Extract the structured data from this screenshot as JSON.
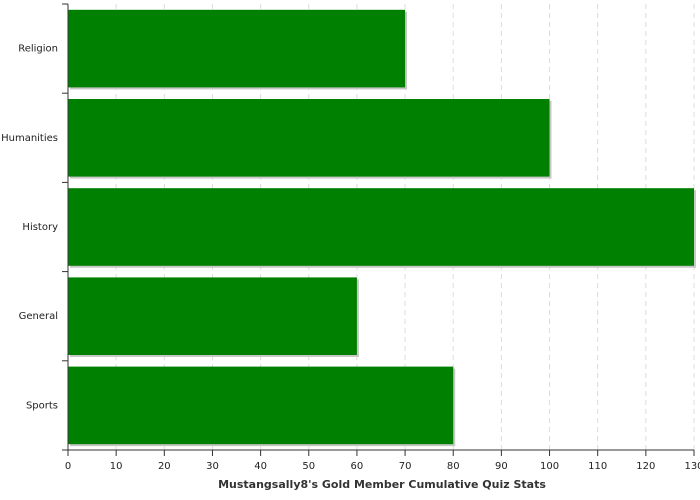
{
  "chart_data": {
    "type": "barh",
    "x_label": "Mustangsally8's Gold Member Cumulative Quiz Stats",
    "categories": [
      "Religion",
      "Humanities",
      "History",
      "General",
      "Sports"
    ],
    "values": [
      70,
      100,
      130,
      60,
      80
    ],
    "color": "#008000",
    "xlim": [
      0,
      130
    ],
    "xticks": [
      0,
      10,
      20,
      30,
      40,
      50,
      60,
      70,
      80,
      90,
      100,
      110,
      120,
      130
    ],
    "grid": true
  }
}
